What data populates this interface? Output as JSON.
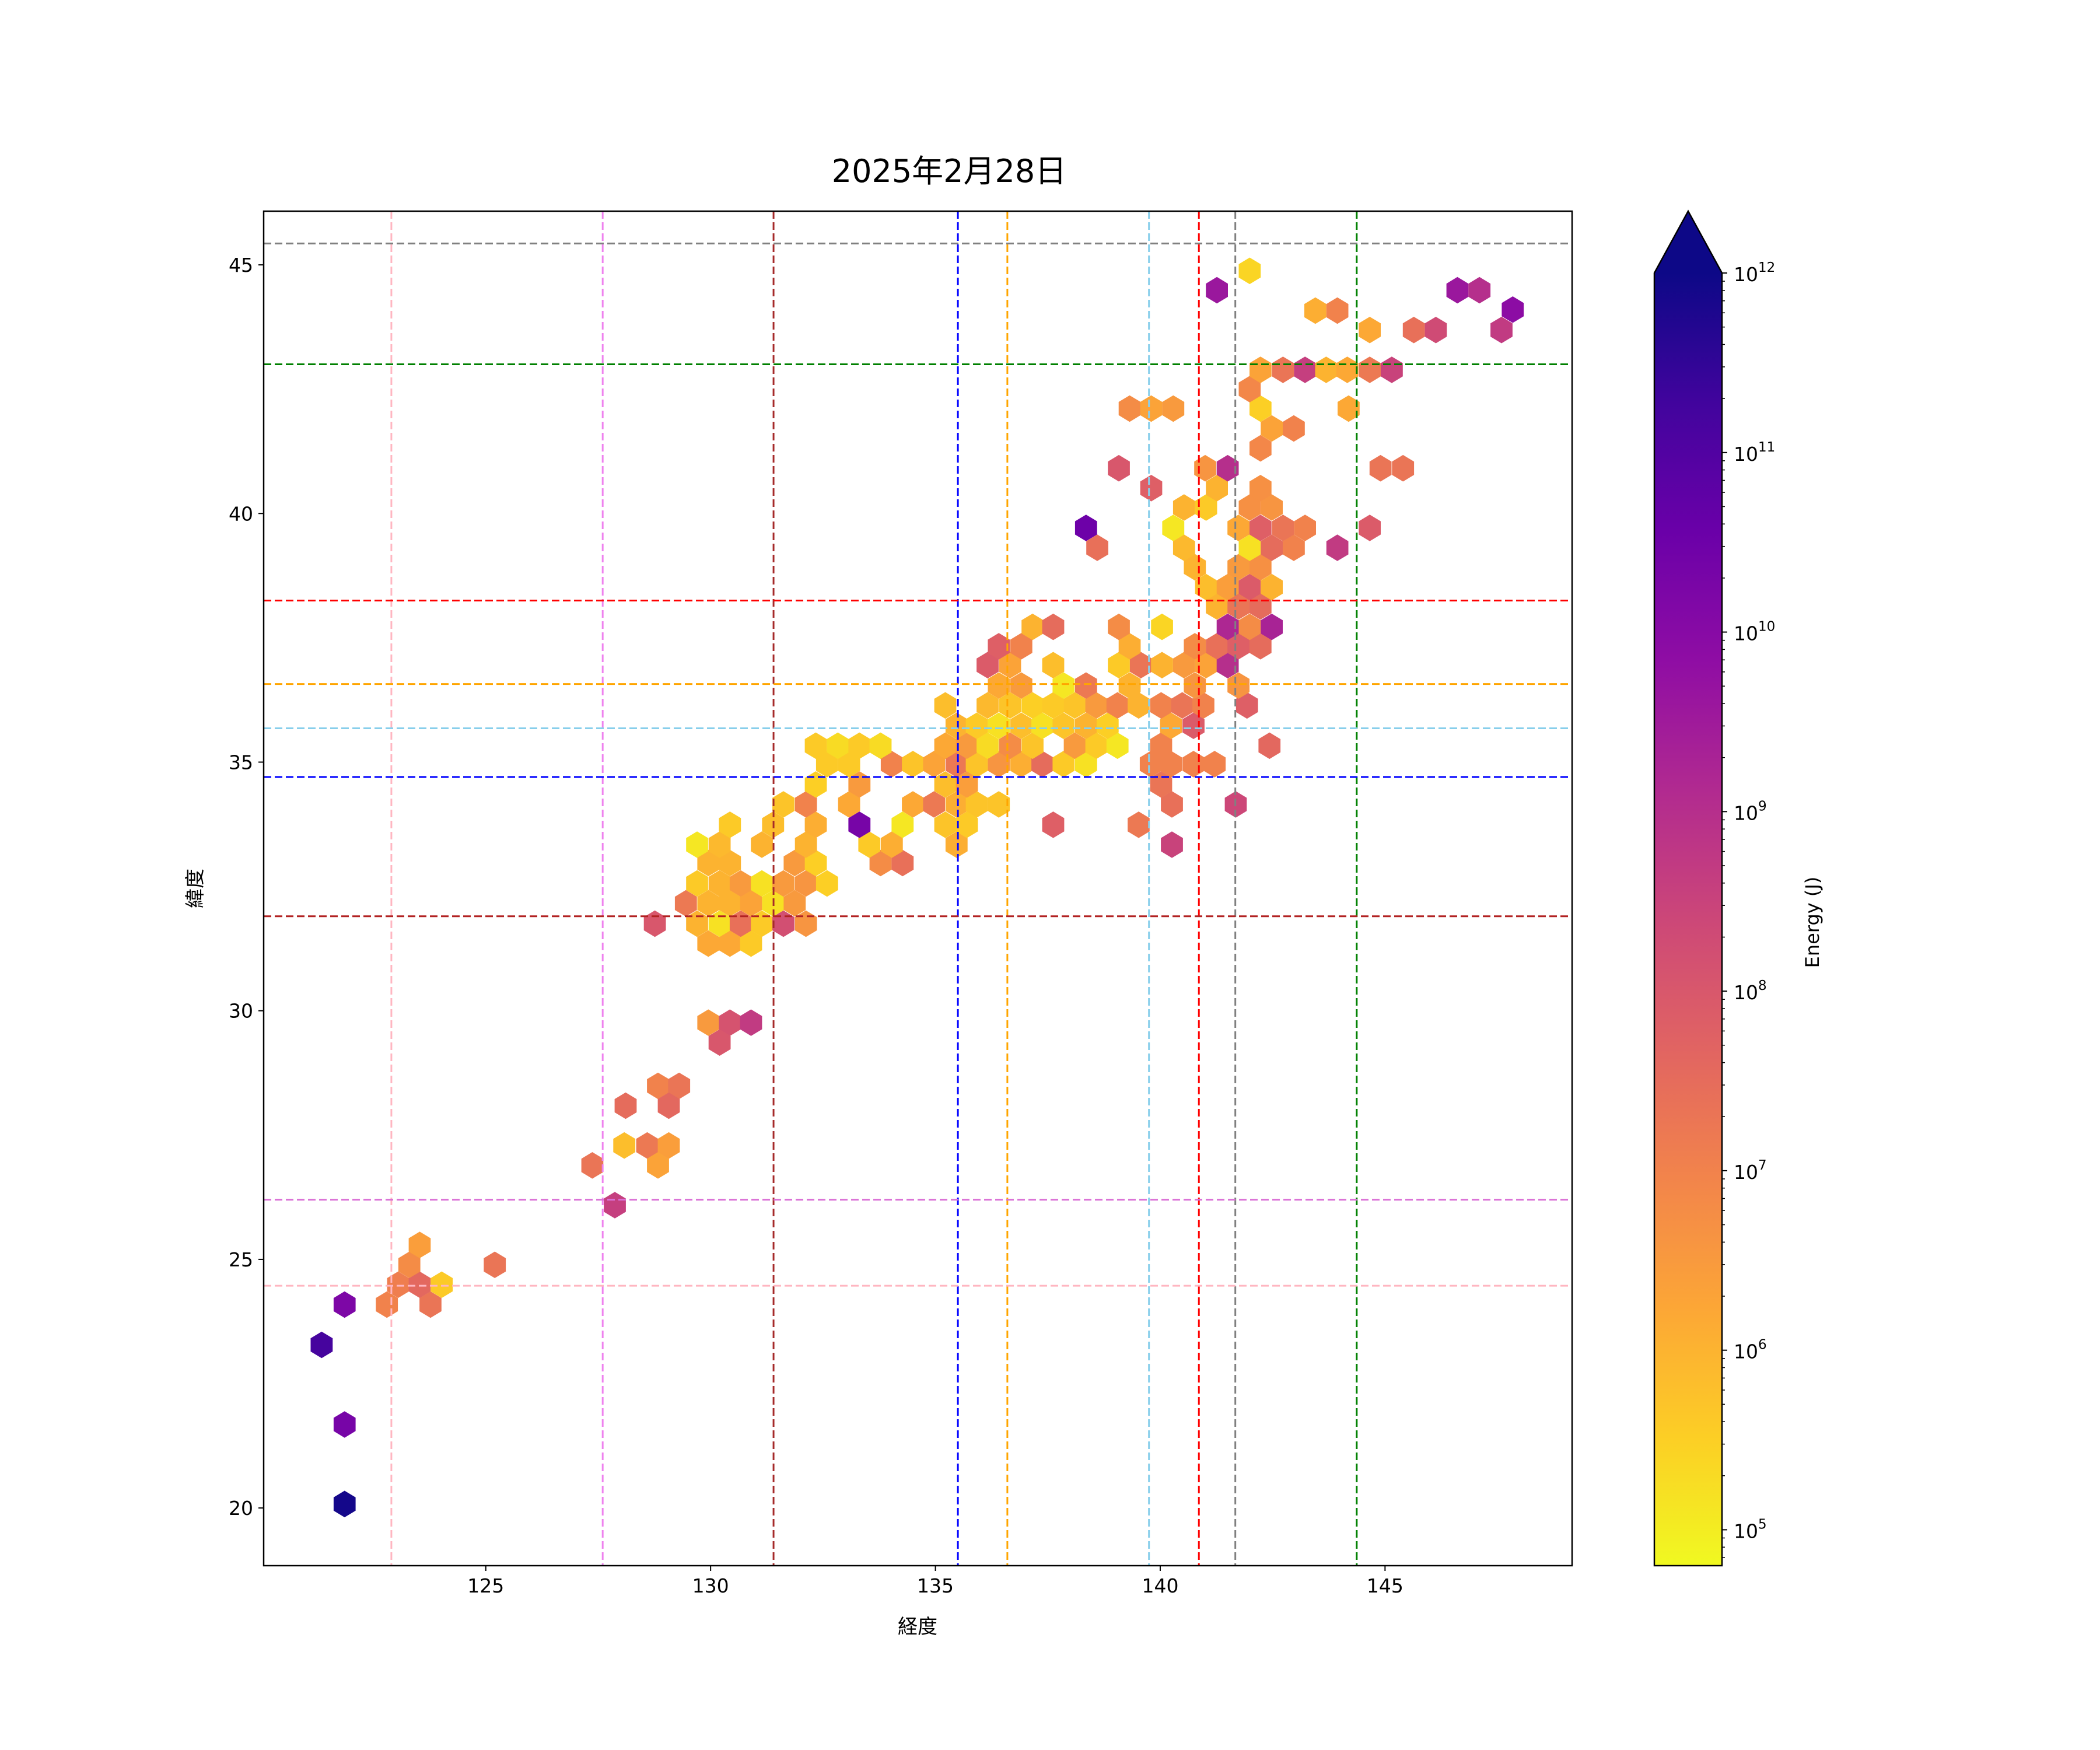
{
  "chart_data": {
    "type": "heatmap",
    "subtype": "hexbin",
    "title": "2025年2月28日",
    "xlabel": "経度",
    "ylabel": "緯度",
    "xlim": [
      120.06,
      149.16
    ],
    "ylim": [
      18.84,
      46.08
    ],
    "xticks": [
      125,
      130,
      135,
      140,
      145
    ],
    "xtick_labels": [
      "125",
      "130",
      "135",
      "140",
      "145"
    ],
    "yticks": [
      20,
      25,
      30,
      35,
      40,
      45
    ],
    "ytick_labels": [
      "20",
      "25",
      "30",
      "35",
      "40",
      "45"
    ],
    "grid": false,
    "colorbar": {
      "label": "Energy (J)",
      "colormap": "plasma_r",
      "scale": "log",
      "log10_range": [
        4.8,
        12
      ],
      "extend": "max",
      "ticks": [
        {
          "log10": 5,
          "base": "10",
          "exp": "5"
        },
        {
          "log10": 6,
          "base": "10",
          "exp": "6"
        },
        {
          "log10": 7,
          "base": "10",
          "exp": "7"
        },
        {
          "log10": 8,
          "base": "10",
          "exp": "8"
        },
        {
          "log10": 9,
          "base": "10",
          "exp": "9"
        },
        {
          "log10": 10,
          "base": "10",
          "exp": "10"
        },
        {
          "log10": 11,
          "base": "10",
          "exp": "11"
        },
        {
          "log10": 12,
          "base": "10",
          "exp": "12"
        }
      ]
    },
    "vertical_lines": [
      {
        "lon": 122.9,
        "color": "#ffb6c1"
      },
      {
        "lon": 127.6,
        "color": "#ee82ee"
      },
      {
        "lon": 131.4,
        "color": "#a52a2a"
      },
      {
        "lon": 135.5,
        "color": "#0000ff"
      },
      {
        "lon": 136.6,
        "color": "#ffa500"
      },
      {
        "lon": 139.75,
        "color": "#87ceeb"
      },
      {
        "lon": 140.86,
        "color": "#ff0000"
      },
      {
        "lon": 141.67,
        "color": "#808080"
      },
      {
        "lon": 144.37,
        "color": "#008000"
      }
    ],
    "horizontal_lines": [
      {
        "lat": 45.43,
        "color": "#808080"
      },
      {
        "lat": 43.0,
        "color": "#008000"
      },
      {
        "lat": 38.25,
        "color": "#ff0000"
      },
      {
        "lat": 36.57,
        "color": "#ffa500"
      },
      {
        "lat": 35.68,
        "color": "#87ceeb"
      },
      {
        "lat": 34.7,
        "color": "#0000ff"
      },
      {
        "lat": 31.9,
        "color": "#b22222"
      },
      {
        "lat": 26.2,
        "color": "#da70d6"
      },
      {
        "lat": 24.47,
        "color": "#ffb6c1"
      }
    ],
    "hexbin_fields": [
      "lon",
      "lat",
      "log10_energy_J"
    ],
    "hexbins": [
      [
        121.86,
        20.08,
        11.9
      ],
      [
        121.86,
        21.68,
        10.3
      ],
      [
        121.35,
        23.28,
        11.2
      ],
      [
        121.86,
        24.09,
        10.2
      ],
      [
        122.8,
        24.09,
        7.0
      ],
      [
        123.77,
        24.09,
        7.3
      ],
      [
        123.05,
        24.49,
        7.1
      ],
      [
        123.53,
        24.49,
        7.6
      ],
      [
        124.02,
        24.49,
        5.6
      ],
      [
        123.3,
        24.89,
        6.8
      ],
      [
        123.53,
        25.29,
        6.4
      ],
      [
        125.2,
        24.89,
        7.3
      ],
      [
        127.37,
        26.89,
        7.3
      ],
      [
        127.87,
        26.09,
        8.6
      ],
      [
        128.11,
        28.09,
        7.5
      ],
      [
        128.08,
        27.29,
        5.8
      ],
      [
        128.59,
        27.29,
        7.2
      ],
      [
        129.07,
        27.29,
        6.4
      ],
      [
        128.83,
        26.89,
        6.3
      ],
      [
        128.83,
        28.49,
        7.0
      ],
      [
        129.3,
        28.49,
        7.3
      ],
      [
        129.07,
        28.09,
        7.6
      ],
      [
        129.95,
        29.76,
        6.5
      ],
      [
        130.43,
        29.76,
        8.1
      ],
      [
        130.9,
        29.76,
        8.7
      ],
      [
        130.2,
        29.36,
        8.0
      ],
      [
        129.95,
        31.35,
        6.2
      ],
      [
        130.43,
        31.35,
        6.2
      ],
      [
        130.9,
        31.35,
        5.6
      ],
      [
        128.76,
        31.75,
        8.0
      ],
      [
        129.7,
        31.75,
        6.0
      ],
      [
        130.2,
        31.75,
        5.2
      ],
      [
        130.67,
        31.75,
        7.4
      ],
      [
        131.14,
        31.75,
        5.6
      ],
      [
        131.62,
        31.75,
        8.2
      ],
      [
        132.12,
        31.75,
        6.6
      ],
      [
        129.45,
        32.16,
        7.2
      ],
      [
        129.95,
        32.16,
        6.0
      ],
      [
        130.43,
        32.16,
        6.0
      ],
      [
        130.9,
        32.16,
        6.3
      ],
      [
        131.39,
        32.16,
        5.2
      ],
      [
        131.87,
        32.16,
        6.5
      ],
      [
        129.7,
        32.56,
        5.6
      ],
      [
        130.2,
        32.56,
        6.0
      ],
      [
        130.67,
        32.56,
        6.5
      ],
      [
        131.14,
        32.56,
        5.2
      ],
      [
        131.62,
        32.56,
        6.5
      ],
      [
        132.12,
        32.56,
        6.6
      ],
      [
        132.59,
        32.56,
        5.5
      ],
      [
        129.95,
        32.97,
        6.0
      ],
      [
        130.43,
        32.97,
        6.0
      ],
      [
        131.87,
        32.97,
        6.5
      ],
      [
        132.34,
        32.97,
        5.5
      ],
      [
        133.78,
        32.97,
        6.8
      ],
      [
        134.27,
        32.97,
        7.4
      ],
      [
        129.7,
        33.34,
        5.1
      ],
      [
        130.2,
        33.34,
        5.9
      ],
      [
        131.14,
        33.34,
        6.0
      ],
      [
        132.12,
        33.34,
        6.0
      ],
      [
        133.53,
        33.34,
        5.6
      ],
      [
        134.03,
        33.34,
        6.1
      ],
      [
        135.47,
        33.34,
        6.1
      ],
      [
        140.26,
        33.34,
        8.5
      ],
      [
        130.43,
        33.74,
        5.6
      ],
      [
        131.39,
        33.74,
        5.8
      ],
      [
        132.34,
        33.74,
        6.1
      ],
      [
        133.31,
        33.74,
        10.3
      ],
      [
        134.27,
        33.74,
        5.1
      ],
      [
        135.22,
        33.74,
        5.7
      ],
      [
        135.7,
        33.74,
        5.6
      ],
      [
        137.62,
        33.74,
        7.8
      ],
      [
        139.52,
        33.74,
        7.2
      ],
      [
        131.62,
        34.15,
        5.7
      ],
      [
        132.12,
        34.15,
        7.0
      ],
      [
        133.08,
        34.15,
        6.2
      ],
      [
        134.5,
        34.15,
        6.2
      ],
      [
        134.97,
        34.15,
        7.2
      ],
      [
        135.47,
        34.15,
        6.1
      ],
      [
        135.92,
        34.15,
        5.7
      ],
      [
        136.41,
        34.15,
        5.7
      ],
      [
        140.26,
        34.15,
        7.4
      ],
      [
        141.68,
        34.15,
        8.4
      ],
      [
        132.34,
        34.55,
        5.5
      ],
      [
        133.31,
        34.55,
        6.5
      ],
      [
        135.22,
        34.55,
        5.8
      ],
      [
        135.7,
        34.55,
        6.4
      ],
      [
        140.02,
        34.55,
        7.3
      ],
      [
        132.59,
        34.96,
        5.6
      ],
      [
        133.08,
        34.96,
        5.6
      ],
      [
        134.03,
        34.96,
        7.0
      ],
      [
        134.5,
        34.96,
        5.7
      ],
      [
        134.97,
        34.96,
        6.3
      ],
      [
        135.47,
        34.96,
        7.2
      ],
      [
        135.92,
        34.96,
        5.7
      ],
      [
        136.41,
        34.96,
        6.6
      ],
      [
        136.91,
        34.96,
        6.1
      ],
      [
        137.38,
        34.96,
        7.5
      ],
      [
        137.85,
        34.96,
        5.6
      ],
      [
        138.35,
        34.96,
        5.2
      ],
      [
        139.79,
        34.96,
        7.0
      ],
      [
        140.24,
        34.96,
        7.0
      ],
      [
        140.74,
        34.96,
        7.0
      ],
      [
        141.21,
        34.96,
        7.0
      ],
      [
        132.34,
        35.33,
        5.6
      ],
      [
        132.83,
        35.33,
        5.3
      ],
      [
        133.31,
        35.33,
        5.6
      ],
      [
        133.78,
        35.33,
        5.3
      ],
      [
        135.22,
        35.33,
        6.2
      ],
      [
        135.7,
        35.33,
        6.5
      ],
      [
        136.16,
        35.33,
        5.3
      ],
      [
        136.66,
        35.33,
        6.8
      ],
      [
        137.16,
        35.33,
        5.7
      ],
      [
        138.1,
        35.33,
        6.5
      ],
      [
        138.58,
        35.33,
        5.6
      ],
      [
        139.05,
        35.33,
        5.1
      ],
      [
        140.02,
        35.33,
        7.0
      ],
      [
        142.43,
        35.33,
        7.6
      ],
      [
        135.47,
        35.73,
        6.0
      ],
      [
        135.92,
        35.73,
        5.6
      ],
      [
        136.41,
        35.73,
        5.2
      ],
      [
        136.91,
        35.73,
        5.8
      ],
      [
        137.38,
        35.73,
        5.2
      ],
      [
        137.85,
        35.73,
        5.7
      ],
      [
        138.35,
        35.73,
        6.0
      ],
      [
        138.83,
        35.73,
        5.5
      ],
      [
        140.24,
        35.73,
        6.2
      ],
      [
        140.74,
        35.73,
        7.9
      ],
      [
        135.22,
        36.14,
        5.8
      ],
      [
        136.16,
        36.14,
        5.9
      ],
      [
        136.66,
        36.14,
        5.7
      ],
      [
        137.16,
        36.14,
        5.5
      ],
      [
        137.62,
        36.14,
        5.6
      ],
      [
        138.1,
        36.14,
        5.7
      ],
      [
        138.58,
        36.14,
        6.5
      ],
      [
        139.05,
        36.14,
        7.0
      ],
      [
        139.52,
        36.14,
        6.0
      ],
      [
        140.02,
        36.14,
        7.0
      ],
      [
        140.49,
        36.14,
        7.3
      ],
      [
        140.96,
        36.14,
        7.0
      ],
      [
        141.93,
        36.14,
        7.8
      ],
      [
        136.41,
        36.54,
        6.2
      ],
      [
        136.91,
        36.54,
        6.5
      ],
      [
        137.85,
        36.54,
        5.1
      ],
      [
        138.35,
        36.54,
        7.2
      ],
      [
        139.32,
        36.54,
        6.0
      ],
      [
        140.77,
        36.54,
        6.6
      ],
      [
        141.74,
        36.54,
        6.6
      ],
      [
        136.16,
        36.95,
        7.9
      ],
      [
        136.66,
        36.95,
        6.3
      ],
      [
        137.62,
        36.95,
        5.8
      ],
      [
        139.08,
        36.95,
        5.6
      ],
      [
        139.57,
        36.95,
        7.3
      ],
      [
        140.04,
        36.95,
        6.0
      ],
      [
        140.53,
        36.95,
        6.5
      ],
      [
        141.02,
        36.95,
        6.3
      ],
      [
        141.5,
        36.95,
        9.0
      ],
      [
        136.41,
        37.33,
        7.8
      ],
      [
        136.91,
        37.33,
        7.0
      ],
      [
        139.32,
        37.33,
        6.1
      ],
      [
        140.77,
        37.33,
        6.8
      ],
      [
        141.26,
        37.33,
        7.4
      ],
      [
        141.74,
        37.33,
        7.8
      ],
      [
        142.23,
        37.33,
        7.5
      ],
      [
        137.16,
        37.72,
        6.0
      ],
      [
        137.62,
        37.72,
        7.5
      ],
      [
        139.08,
        37.72,
        6.8
      ],
      [
        140.04,
        37.72,
        5.4
      ],
      [
        141.5,
        37.72,
        9.2
      ],
      [
        141.99,
        37.72,
        6.8
      ],
      [
        142.48,
        37.72,
        9.3
      ],
      [
        141.26,
        38.13,
        6.0
      ],
      [
        141.74,
        38.13,
        7.3
      ],
      [
        142.23,
        38.13,
        7.5
      ],
      [
        141.02,
        38.52,
        5.8
      ],
      [
        141.5,
        38.52,
        6.4
      ],
      [
        141.99,
        38.52,
        7.9
      ],
      [
        142.48,
        38.52,
        6.0
      ],
      [
        140.77,
        38.92,
        6.0
      ],
      [
        141.74,
        38.92,
        6.5
      ],
      [
        142.23,
        38.92,
        6.7
      ],
      [
        138.6,
        39.31,
        7.4
      ],
      [
        140.53,
        39.31,
        5.9
      ],
      [
        141.99,
        39.31,
        5.2
      ],
      [
        142.48,
        39.31,
        7.5
      ],
      [
        142.97,
        39.31,
        7.0
      ],
      [
        143.94,
        39.31,
        8.7
      ],
      [
        138.35,
        39.71,
        10.5
      ],
      [
        140.29,
        39.71,
        5.1
      ],
      [
        141.74,
        39.71,
        6.2
      ],
      [
        142.23,
        39.71,
        7.8
      ],
      [
        142.73,
        39.71,
        7.3
      ],
      [
        143.22,
        39.71,
        7.0
      ],
      [
        144.66,
        39.71,
        7.9
      ],
      [
        140.53,
        40.12,
        6.0
      ],
      [
        141.02,
        40.12,
        5.6
      ],
      [
        141.99,
        40.12,
        6.7
      ],
      [
        142.48,
        40.12,
        6.6
      ],
      [
        139.8,
        40.51,
        7.8
      ],
      [
        141.26,
        40.51,
        6.0
      ],
      [
        142.23,
        40.51,
        6.7
      ],
      [
        139.08,
        40.91,
        8.0
      ],
      [
        141.0,
        40.91,
        6.6
      ],
      [
        141.5,
        40.91,
        9.0
      ],
      [
        144.9,
        40.91,
        7.3
      ],
      [
        145.4,
        40.91,
        7.3
      ],
      [
        142.23,
        41.31,
        6.9
      ],
      [
        142.48,
        41.71,
        6.3
      ],
      [
        142.97,
        41.71,
        7.0
      ],
      [
        139.32,
        42.11,
        6.8
      ],
      [
        139.8,
        42.11,
        6.3
      ],
      [
        140.29,
        42.11,
        6.5
      ],
      [
        142.23,
        42.11,
        5.5
      ],
      [
        144.19,
        42.11,
        6.2
      ],
      [
        141.99,
        42.5,
        6.9
      ],
      [
        142.23,
        42.89,
        6.3
      ],
      [
        142.73,
        42.89,
        7.3
      ],
      [
        143.22,
        42.89,
        8.6
      ],
      [
        143.69,
        42.89,
        6.0
      ],
      [
        144.16,
        42.89,
        6.2
      ],
      [
        144.66,
        42.89,
        7.2
      ],
      [
        145.15,
        42.89,
        8.5
      ],
      [
        144.66,
        43.69,
        6.2
      ],
      [
        145.64,
        43.69,
        7.4
      ],
      [
        146.13,
        43.69,
        8.3
      ],
      [
        147.59,
        43.69,
        8.7
      ],
      [
        143.45,
        44.08,
        6.1
      ],
      [
        143.94,
        44.08,
        7.0
      ],
      [
        147.84,
        44.1,
        9.9
      ],
      [
        141.26,
        44.49,
        9.6
      ],
      [
        146.61,
        44.49,
        9.6
      ],
      [
        147.1,
        44.49,
        9.0
      ],
      [
        141.99,
        44.88,
        5.4
      ]
    ]
  }
}
